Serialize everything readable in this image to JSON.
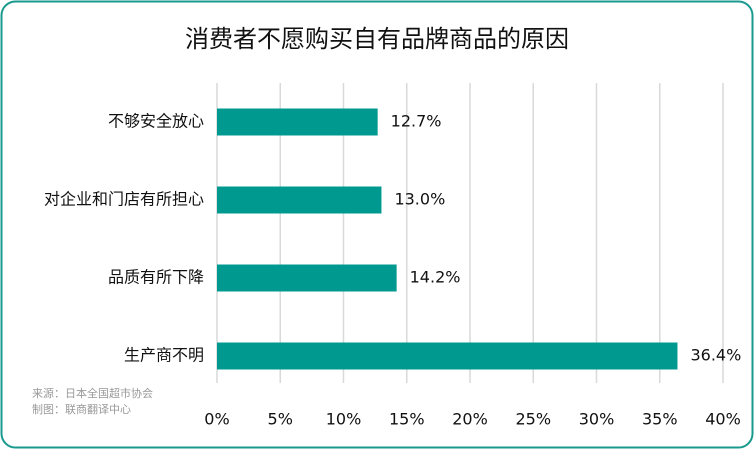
{
  "chart_data": {
    "type": "bar",
    "orientation": "horizontal",
    "title": "消费者不愿购买自有品牌商品的原因",
    "categories": [
      "不够安全放心",
      "对企业和门店有所担心",
      "品质有所下降",
      "生产商不明"
    ],
    "values": [
      12.7,
      13.0,
      14.2,
      36.4
    ],
    "value_labels": [
      "12.7%",
      "13.0%",
      "14.2%",
      "36.4%"
    ],
    "color": "#009990",
    "xlim": [
      0,
      40
    ],
    "xticks": [
      {
        "value": 0,
        "label": "0%"
      },
      {
        "value": 5,
        "label": "5%"
      },
      {
        "value": 10,
        "label": "10%"
      },
      {
        "value": 15,
        "label": "15%"
      },
      {
        "value": 20,
        "label": "20%"
      },
      {
        "value": 25,
        "label": "25%"
      },
      {
        "value": 30,
        "label": "30%"
      },
      {
        "value": 35,
        "label": "35%"
      },
      {
        "value": 40,
        "label": "40%"
      }
    ],
    "grid": true,
    "notes": [
      "来源：日本全国超市协会",
      "制图：联商翻译中心"
    ]
  }
}
